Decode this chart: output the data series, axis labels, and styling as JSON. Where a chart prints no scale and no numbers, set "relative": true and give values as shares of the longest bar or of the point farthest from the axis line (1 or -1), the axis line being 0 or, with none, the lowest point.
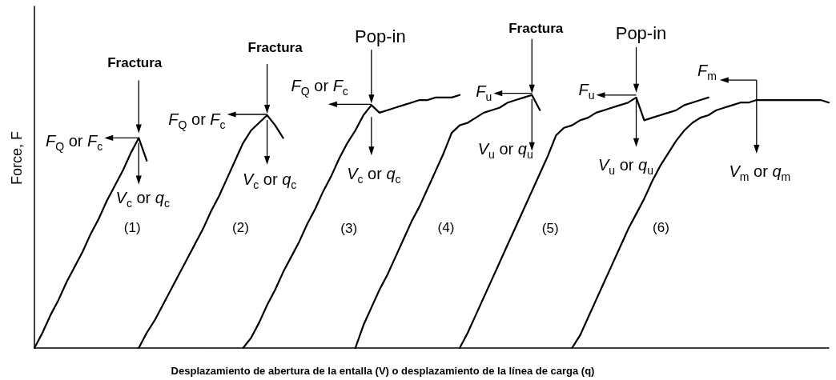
{
  "chart_data": {
    "type": "line",
    "relative": true,
    "xlabel": "Desplazamiento de abertura de la entalla (V) o desplazamiento de la línea de carga (q)",
    "ylabel": "Force, F",
    "categories": [
      null,
      null,
      null,
      null,
      null,
      null,
      null,
      null,
      null,
      null,
      null,
      null,
      null,
      null,
      null,
      null,
      null,
      null,
      null,
      null,
      null,
      null,
      null,
      null,
      null,
      null,
      null,
      null,
      null,
      null,
      null,
      null,
      null,
      null,
      null,
      null,
      null,
      null,
      null,
      null,
      null,
      null,
      null,
      null,
      null,
      null,
      null,
      null,
      null,
      null,
      null,
      null,
      null,
      null,
      null,
      null,
      null,
      null,
      null,
      null,
      null,
      null,
      null,
      null,
      null,
      null,
      null,
      null,
      null,
      null,
      null,
      null,
      null,
      null,
      null,
      null,
      null,
      null,
      null,
      null,
      null,
      null,
      null,
      null,
      null,
      null,
      null,
      null,
      null,
      null,
      null,
      null,
      null,
      null,
      null,
      null,
      null,
      null,
      null,
      null
    ],
    "series": [
      {
        "name": "(1)",
        "color": "#000000",
        "values": [
          0,
          0.06,
          0.13,
          0.19,
          0.26,
          0.32,
          0.38,
          0.45,
          0.51,
          0.58,
          0.64,
          0.7,
          0.77,
          0.83,
          0.74,
          null,
          null,
          null,
          null,
          null,
          null,
          null,
          null,
          null,
          null,
          null,
          null,
          null,
          null,
          null,
          null,
          null,
          null,
          null,
          null,
          null,
          null,
          null,
          null,
          null,
          null,
          null,
          null,
          null,
          null,
          null,
          null,
          null,
          null,
          null,
          null,
          null,
          null,
          null,
          null,
          null,
          null,
          null,
          null,
          null,
          null,
          null,
          null,
          null,
          null,
          null,
          null,
          null,
          null,
          null,
          null,
          null,
          null,
          null,
          null,
          null,
          null,
          null,
          null,
          null,
          null,
          null,
          null,
          null,
          null,
          null,
          null,
          null,
          null,
          null,
          null,
          null,
          null,
          null,
          null,
          null,
          null,
          null,
          null,
          null
        ]
      },
      {
        "name": "(2)",
        "color": "#000000",
        "values": [
          null,
          null,
          null,
          null,
          null,
          null,
          null,
          null,
          null,
          null,
          null,
          null,
          null,
          0,
          0.06,
          0.11,
          0.17,
          0.23,
          0.29,
          0.35,
          0.41,
          0.47,
          0.54,
          0.6,
          0.67,
          0.74,
          0.81,
          0.86,
          0.89,
          0.92,
          0.88,
          0.83,
          null,
          null,
          null,
          null,
          null,
          null,
          null,
          null,
          null,
          null,
          null,
          null,
          null,
          null,
          null,
          null,
          null,
          null,
          null,
          null,
          null,
          null,
          null,
          null,
          null,
          null,
          null,
          null,
          null,
          null,
          null,
          null,
          null,
          null,
          null,
          null,
          null,
          null,
          null,
          null,
          null,
          null,
          null,
          null,
          null,
          null,
          null,
          null,
          null,
          null,
          null,
          null,
          null,
          null,
          null,
          null,
          null,
          null,
          null,
          null,
          null,
          null,
          null,
          null,
          null,
          null,
          null,
          null
        ]
      },
      {
        "name": "(3)",
        "color": "#000000",
        "values": [
          null,
          null,
          null,
          null,
          null,
          null,
          null,
          null,
          null,
          null,
          null,
          null,
          null,
          null,
          null,
          null,
          null,
          null,
          null,
          null,
          null,
          null,
          null,
          null,
          null,
          null,
          0,
          0.04,
          0.1,
          0.17,
          0.23,
          0.3,
          0.36,
          0.42,
          0.49,
          0.55,
          0.62,
          0.68,
          0.75,
          0.81,
          0.86,
          0.92,
          0.96,
          0.93,
          0.94,
          0.95,
          0.96,
          0.97,
          0.98,
          0.98,
          0.99,
          0.99,
          0.99,
          1.0,
          null,
          null,
          null,
          null,
          null,
          null,
          null,
          null,
          null,
          null,
          null,
          null,
          null,
          null,
          null,
          null,
          null,
          null,
          null,
          null,
          null,
          null,
          null,
          null,
          null,
          null,
          null,
          null,
          null,
          null,
          null,
          null,
          null,
          null,
          null,
          null,
          null,
          null,
          null,
          null,
          null,
          null,
          null,
          null,
          null,
          null
        ]
      },
      {
        "name": "(4)",
        "color": "#000000",
        "values": [
          null,
          null,
          null,
          null,
          null,
          null,
          null,
          null,
          null,
          null,
          null,
          null,
          null,
          null,
          null,
          null,
          null,
          null,
          null,
          null,
          null,
          null,
          null,
          null,
          null,
          null,
          null,
          null,
          null,
          null,
          null,
          null,
          null,
          null,
          null,
          null,
          null,
          null,
          null,
          null,
          0,
          0.09,
          0.16,
          0.23,
          0.29,
          0.36,
          0.43,
          0.5,
          0.56,
          0.63,
          0.7,
          0.77,
          0.85,
          0.88,
          0.89,
          0.91,
          0.93,
          0.94,
          0.95,
          0.97,
          0.98,
          0.99,
          1.0,
          0.94,
          null,
          null,
          null,
          null,
          null,
          null,
          null,
          null,
          null,
          null,
          null,
          null,
          null,
          null,
          null,
          null,
          null,
          null,
          null,
          null,
          null,
          null,
          null,
          null,
          null,
          null,
          null,
          null,
          null,
          null,
          null,
          null,
          null,
          null,
          null,
          null
        ]
      },
      {
        "name": "(5)",
        "color": "#000000",
        "values": [
          null,
          null,
          null,
          null,
          null,
          null,
          null,
          null,
          null,
          null,
          null,
          null,
          null,
          null,
          null,
          null,
          null,
          null,
          null,
          null,
          null,
          null,
          null,
          null,
          null,
          null,
          null,
          null,
          null,
          null,
          null,
          null,
          null,
          null,
          null,
          null,
          null,
          null,
          null,
          null,
          null,
          null,
          null,
          null,
          null,
          null,
          null,
          null,
          null,
          null,
          null,
          null,
          null,
          0,
          0.06,
          0.13,
          0.2,
          0.27,
          0.34,
          0.41,
          0.48,
          0.55,
          0.62,
          0.69,
          0.76,
          0.84,
          0.87,
          0.88,
          0.9,
          0.91,
          0.93,
          0.94,
          0.95,
          0.96,
          0.97,
          0.99,
          0.9,
          0.91,
          0.92,
          0.93,
          0.94,
          0.96,
          0.97,
          0.98,
          0.99,
          null,
          null,
          null,
          null,
          null,
          null,
          null,
          null,
          null,
          null,
          null,
          null,
          null,
          null,
          null
        ]
      },
      {
        "name": "(6)",
        "color": "#000000",
        "values": [
          null,
          null,
          null,
          null,
          null,
          null,
          null,
          null,
          null,
          null,
          null,
          null,
          null,
          null,
          null,
          null,
          null,
          null,
          null,
          null,
          null,
          null,
          null,
          null,
          null,
          null,
          null,
          null,
          null,
          null,
          null,
          null,
          null,
          null,
          null,
          null,
          null,
          null,
          null,
          null,
          null,
          null,
          null,
          null,
          null,
          null,
          null,
          null,
          null,
          null,
          null,
          null,
          null,
          null,
          null,
          null,
          null,
          null,
          null,
          null,
          null,
          null,
          null,
          null,
          null,
          null,
          null,
          0,
          0.05,
          0.12,
          0.19,
          0.26,
          0.33,
          0.4,
          0.47,
          0.53,
          0.59,
          0.66,
          0.72,
          0.77,
          0.82,
          0.86,
          0.89,
          0.91,
          0.92,
          0.94,
          0.95,
          0.96,
          0.97,
          0.97,
          0.98,
          0.98,
          0.98,
          0.98,
          0.98,
          0.98,
          0.98,
          0.98,
          0.98,
          0.97
        ]
      }
    ],
    "annotations": [
      "Fractura",
      "F$_{Q}$ or F$_{c}$",
      "V$_{c}$ or q$_{c}$",
      "Fractura",
      "F$_{Q}$ or F$_{c}$",
      "V$_{c}$ or q$_{c}$",
      "Pop-in",
      "F$_{Q}$ or F$_{c}$",
      "V$_{c}$ or q$_{c}$",
      "Fractura",
      "F$_{u}$",
      "V$_{u}$ or q$_{u}$",
      "Pop-in",
      "F$_{u}$",
      "V$_{u}$ or q$_{u}$",
      "F$_{m}$",
      "V$_{m}$ or q$_{m}$"
    ]
  }
}
